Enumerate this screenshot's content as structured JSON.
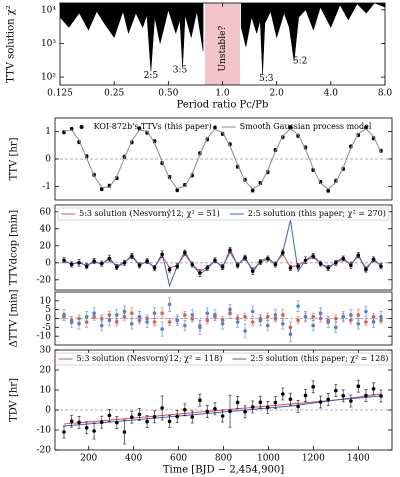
{
  "chart_data": [
    {
      "type": "area",
      "xscale": "log",
      "yscale": "log",
      "ylabel": "TTV solution χ²",
      "xlabel": "Period ratio Pc/Pb",
      "xlim": [
        0.125,
        8
      ],
      "ylim": [
        58,
        16000
      ],
      "xticks": [
        0.125,
        0.25,
        {
          "value": 0.5,
          "label": "0.50"
        },
        {
          "value": 1,
          "label": "1.0"
        },
        {
          "value": 2,
          "label": "2.0"
        },
        {
          "value": 4,
          "label": "4.0"
        },
        {
          "value": 8,
          "label": "8.0"
        }
      ],
      "yticks": [
        {
          "value": 100,
          "label": "10²"
        },
        {
          "value": 1000,
          "label": "10³"
        },
        {
          "value": 10000,
          "label": "10⁴"
        }
      ],
      "shade": [
        0.8,
        1.25
      ],
      "shade_color": "#f2c6c8",
      "series": [
        {
          "type": "area",
          "color": "#000000",
          "x": [
            0.125,
            0.14,
            0.16,
            0.18,
            0.2,
            0.22,
            0.25,
            0.28,
            0.3,
            0.33,
            0.36,
            0.38,
            0.4,
            0.42,
            0.45,
            0.5,
            0.55,
            0.58,
            0.6,
            0.62,
            0.67,
            0.72,
            0.78,
            1.0,
            1.27,
            1.35,
            1.45,
            1.55,
            1.62,
            1.67,
            1.72,
            1.85,
            2.0,
            2.2,
            2.35,
            2.5,
            2.65,
            2.9,
            3.2,
            3.5,
            4.0,
            4.5,
            5.0,
            5.6,
            6.3,
            7.0,
            8.0
          ],
          "values": [
            6000,
            3000,
            8000,
            2500,
            9000,
            4000,
            1500,
            9000,
            2000,
            8000,
            3000,
            7000,
            150,
            6000,
            1000,
            10000,
            2000,
            5000,
            200,
            7000,
            1500,
            9000,
            600,
            null,
            3000,
            800,
            6000,
            2000,
            5000,
            120,
            4000,
            9000,
            1500,
            8000,
            3000,
            300,
            6000,
            10000,
            2500,
            12000,
            3000,
            14000,
            5000,
            15000,
            8000,
            16000,
            12000
          ]
        }
      ],
      "annotation_color": "#808080",
      "annotations": [
        {
          "text": "2:5",
          "x": 0.4,
          "y": 110,
          "rotate": 0
        },
        {
          "text": "3:5",
          "x": 0.58,
          "y": 160,
          "rotate": 0
        },
        {
          "text": "Unstable?",
          "x": 1.0,
          "y": 700,
          "rotate": -90
        },
        {
          "text": "5:3",
          "x": 1.75,
          "y": 90,
          "rotate": 0
        },
        {
          "text": "5:2",
          "x": 2.7,
          "y": 300,
          "rotate": 0
        }
      ]
    },
    {
      "type": "errorbar",
      "ylabel": "TTV [hr]",
      "xlim": [
        50,
        1550
      ],
      "ylim": [
        -1.5,
        1.5
      ],
      "yticks": [
        -1,
        0,
        1
      ],
      "zero_line": true,
      "legend": "top",
      "legend_box": false,
      "x": [
        90,
        124,
        157,
        191,
        224,
        258,
        292,
        325,
        359,
        392,
        426,
        460,
        493,
        527,
        560,
        594,
        628,
        661,
        695,
        728,
        762,
        796,
        829,
        863,
        896,
        930,
        964,
        997,
        1031,
        1064,
        1098,
        1132,
        1165,
        1199,
        1232,
        1266,
        1300,
        1333,
        1367,
        1400,
        1434,
        1468,
        1501
      ],
      "series": [
        {
          "type": "points",
          "name": "KOI-872b's TTVs (this paper)",
          "color": "#000000",
          "values": [
            0.98,
            1.1,
            0.62,
            0.1,
            -0.58,
            -1.1,
            -0.98,
            -0.7,
            0.08,
            0.61,
            1.12,
            0.96,
            0.65,
            -0.15,
            -0.66,
            -1.14,
            -0.95,
            -0.6,
            0.21,
            0.72,
            1.15,
            0.92,
            0.54,
            -0.28,
            -0.76,
            -1.15,
            -0.88,
            -0.48,
            0.33,
            0.8,
            1.16,
            0.85,
            0.42,
            -0.4,
            -0.84,
            -1.16,
            -0.8,
            -0.36,
            0.46,
            0.88,
            1.15,
            0.76,
            0.3
          ],
          "errors": [
            0.06,
            0.06,
            0.06,
            0.06,
            0.06,
            0.06,
            0.06,
            0.06,
            0.06,
            0.06,
            0.06,
            0.06,
            0.06,
            0.06,
            0.06,
            0.06,
            0.06,
            0.06,
            0.06,
            0.06,
            0.06,
            0.06,
            0.06,
            0.06,
            0.06,
            0.06,
            0.06,
            0.06,
            0.06,
            0.06,
            0.06,
            0.06,
            0.06,
            0.06,
            0.06,
            0.06,
            0.06,
            0.06,
            0.06,
            0.06,
            0.06,
            0.06,
            0.06
          ]
        },
        {
          "type": "line",
          "name": "Smooth Gaussian process model",
          "color": "#8c8c8c",
          "values": [
            1.02,
            1.06,
            0.69,
            0.03,
            -0.62,
            -1.04,
            -1.04,
            -0.64,
            0.03,
            0.67,
            1.06,
            1.02,
            0.59,
            -0.09,
            -0.72,
            -1.08,
            -1.0,
            -0.53,
            0.16,
            0.77,
            1.09,
            0.97,
            0.48,
            -0.22,
            -0.81,
            -1.09,
            -0.94,
            -0.42,
            0.28,
            0.85,
            1.1,
            0.9,
            0.36,
            -0.34,
            -0.89,
            -1.1,
            -0.86,
            -0.3,
            0.4,
            0.93,
            1.1,
            0.82,
            0.24
          ]
        }
      ]
    },
    {
      "type": "errorbar",
      "ylabel": "TTVdcop [min]",
      "xlim": [
        50,
        1550
      ],
      "ylim": [
        -32,
        68
      ],
      "yticks": [
        -20,
        0,
        20,
        40,
        60
      ],
      "zero_line": true,
      "legend": "top",
      "legend_box": true,
      "x": [
        90,
        124,
        157,
        191,
        224,
        258,
        292,
        325,
        359,
        392,
        426,
        460,
        493,
        527,
        560,
        594,
        628,
        661,
        695,
        728,
        762,
        796,
        829,
        863,
        896,
        930,
        964,
        997,
        1031,
        1064,
        1098,
        1132,
        1165,
        1199,
        1232,
        1266,
        1300,
        1333,
        1367,
        1400,
        1434,
        1468,
        1501
      ],
      "series": [
        {
          "type": "line",
          "name": "5:3 solution (Nesvorný12; χ² = 51)",
          "color": "#e0504a",
          "values": [
            2,
            -1,
            0,
            -3,
            1,
            -1,
            4,
            -4,
            1,
            7,
            -2,
            1,
            -5,
            8,
            -6,
            -3,
            10,
            -2,
            -10,
            -5,
            2,
            -4,
            12,
            -2,
            5,
            -8,
            1,
            4,
            -1,
            10,
            -5,
            -3,
            2,
            7,
            -1,
            -5,
            0,
            4,
            -2,
            8,
            -6,
            3,
            -3
          ]
        },
        {
          "type": "line",
          "name": "2:5 solution (this paper; χ² = 270)",
          "color": "#3a5fd0",
          "values": [
            3,
            -2,
            1,
            -4,
            2,
            -2,
            6,
            -5,
            0,
            9,
            -3,
            2,
            -6,
            11,
            -27,
            -4,
            13,
            -2,
            -13,
            -7,
            3,
            -6,
            16,
            -3,
            7,
            -11,
            2,
            6,
            -2,
            13,
            50,
            -10,
            3,
            9,
            -1,
            -7,
            1,
            6,
            -3,
            10,
            -9,
            5,
            -4
          ]
        },
        {
          "type": "points",
          "color": "#000000",
          "values": [
            3,
            -2,
            0,
            -4,
            2,
            -1,
            5,
            -5,
            0,
            8,
            -3,
            2,
            -6,
            10,
            -8,
            -4,
            12,
            -2,
            -12,
            -6,
            3,
            -5,
            15,
            -3,
            6,
            -10,
            1,
            5,
            -2,
            12,
            -6,
            -4,
            3,
            8,
            -1,
            -6,
            0,
            5,
            -3,
            9,
            -8,
            4,
            -4
          ],
          "errors": [
            3,
            3,
            4,
            3,
            3,
            3,
            4,
            3,
            3,
            3,
            3,
            3,
            3,
            4,
            3,
            3,
            3,
            3,
            4,
            3,
            3,
            3,
            3,
            3,
            3,
            4,
            3,
            3,
            3,
            3,
            3,
            3,
            4,
            3,
            3,
            3,
            3,
            3,
            4,
            3,
            3,
            3,
            3
          ]
        }
      ]
    },
    {
      "type": "errorbar",
      "ylabel": "ΔTTV [min]",
      "xlim": [
        50,
        1550
      ],
      "ylim": [
        -15,
        15
      ],
      "yticks": [
        -10,
        -5,
        0,
        5,
        10
      ],
      "zero_line": true,
      "x": [
        90,
        124,
        157,
        191,
        224,
        258,
        292,
        325,
        359,
        392,
        426,
        460,
        493,
        527,
        560,
        594,
        628,
        661,
        695,
        728,
        762,
        796,
        829,
        863,
        896,
        930,
        964,
        997,
        1031,
        1064,
        1098,
        1132,
        1165,
        1199,
        1232,
        1266,
        1300,
        1333,
        1367,
        1400,
        1434,
        1468,
        1501
      ],
      "series": [
        {
          "type": "points",
          "color": "#e0604a",
          "values": [
            1,
            -1,
            0,
            -2,
            1,
            0,
            2,
            -2,
            1,
            3,
            -1,
            0,
            -2,
            3,
            -2,
            -1,
            2,
            0,
            -4,
            -1,
            1,
            -1,
            3,
            0,
            1,
            -2,
            0,
            1,
            0,
            2,
            -5,
            -1,
            1,
            1,
            0,
            -1,
            0,
            1,
            -1,
            2,
            -2,
            1,
            -1
          ],
          "errors": [
            2,
            2,
            2,
            3,
            2,
            2,
            2,
            2,
            2,
            3,
            2,
            2,
            2,
            3,
            2,
            2,
            2,
            2,
            3,
            2,
            2,
            2,
            3,
            2,
            2,
            2,
            2,
            2,
            2,
            3,
            3,
            2,
            2,
            2,
            2,
            2,
            2,
            2,
            2,
            3,
            2,
            2,
            2
          ]
        },
        {
          "type": "points",
          "color": "#4f7fe0",
          "values": [
            2,
            -2,
            -3,
            1,
            3,
            -4,
            -1,
            2,
            4,
            -3,
            1,
            -2,
            3,
            -6,
            8,
            -1,
            -4,
            2,
            -5,
            3,
            2,
            -3,
            5,
            -2,
            -7,
            4,
            -1,
            -4,
            2,
            -3,
            -9,
            7,
            1,
            -4,
            3,
            -2,
            -5,
            1,
            2,
            -3,
            4,
            -2,
            1
          ],
          "errors": [
            3,
            3,
            3,
            3,
            3,
            3,
            3,
            3,
            3,
            3,
            3,
            3,
            3,
            4,
            4,
            3,
            3,
            3,
            4,
            3,
            3,
            3,
            3,
            3,
            4,
            3,
            3,
            3,
            3,
            3,
            4,
            3,
            3,
            3,
            3,
            3,
            3,
            3,
            3,
            3,
            3,
            3,
            3
          ]
        }
      ]
    },
    {
      "type": "errorbar",
      "ylabel": "TDV [hr]",
      "xlabel": "Time [BJD − 2,454,900]",
      "xlim": [
        50,
        1550
      ],
      "ylim": [
        -20,
        30
      ],
      "xticks": [
        200,
        400,
        600,
        800,
        1000,
        1200,
        1400
      ],
      "yticks": [
        -20,
        -10,
        0,
        10,
        20,
        30
      ],
      "zero_line": true,
      "legend": "top",
      "legend_box": true,
      "x": [
        90,
        124,
        157,
        191,
        224,
        258,
        292,
        325,
        359,
        392,
        426,
        460,
        493,
        527,
        560,
        594,
        628,
        661,
        695,
        728,
        762,
        796,
        829,
        863,
        896,
        930,
        964,
        997,
        1031,
        1064,
        1098,
        1132,
        1165,
        1199,
        1232,
        1266,
        1300,
        1333,
        1367,
        1400,
        1434,
        1468,
        1501
      ],
      "series": [
        {
          "type": "line",
          "name": "5:3 solution (Nesvorný12; χ² = 118)",
          "color": "#e0504a",
          "x": [
            90,
            300,
            500,
            700,
            900,
            1100,
            1300,
            1501
          ],
          "values": [
            -7,
            -5,
            -3,
            -1,
            1,
            3,
            5,
            8
          ]
        },
        {
          "type": "line",
          "name": "2:5 solution (this paper; χ² = 128)",
          "color": "#3a5fd0",
          "x": [
            90,
            300,
            500,
            700,
            900,
            1100,
            1300,
            1501
          ],
          "values": [
            -8,
            -6,
            -4,
            -2,
            0,
            2,
            5,
            7
          ]
        },
        {
          "type": "points",
          "color": "#000000",
          "values": [
            -11,
            -5.6,
            -6.2,
            -8.9,
            -10.5,
            -6.1,
            -2.7,
            -6.3,
            -11.0,
            -3.6,
            -2.2,
            -5.8,
            -3.4,
            1.0,
            -5.7,
            -3.3,
            0.1,
            -3.5,
            4.9,
            -0.8,
            0.6,
            -3.0,
            -0.6,
            3.8,
            -0.9,
            1.5,
            3.9,
            1.3,
            3.7,
            8.0,
            5.4,
            1.8,
            7.2,
            11.6,
            4.0,
            5.3,
            9.7,
            7.1,
            4.5,
            11.9,
            7.2,
            10.6,
            7.0
          ],
          "errors": [
            3,
            3,
            3,
            3,
            4,
            3,
            3,
            3,
            6,
            3,
            3,
            3,
            3,
            6,
            3,
            3,
            3,
            3,
            3,
            3,
            3,
            3,
            8,
            3,
            3,
            3,
            3,
            3,
            3,
            3,
            3,
            3,
            3,
            3,
            3,
            3,
            3,
            3,
            3,
            3,
            3,
            3,
            3
          ]
        }
      ]
    }
  ]
}
